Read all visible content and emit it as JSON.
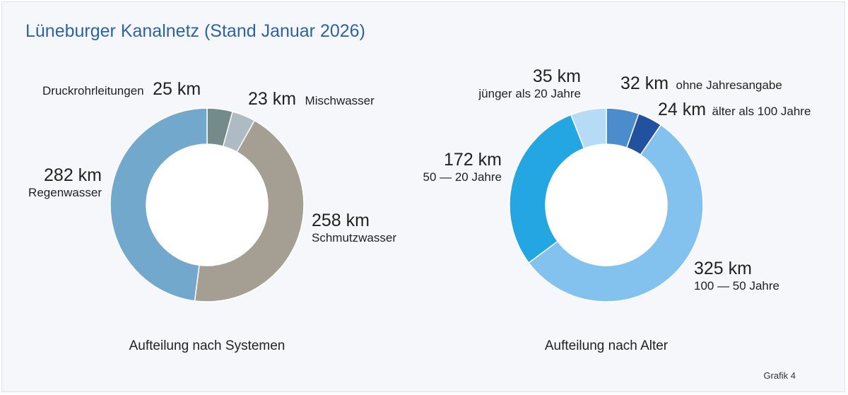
{
  "title": "Lüneburger Kanalnetz (Stand Januar 2026)",
  "footer": "Grafik 4",
  "chart_data": [
    {
      "type": "pie",
      "caption": "Aufteilung nach Systemen",
      "slices": [
        {
          "label": "Druckrohrleitungen",
          "value": 25,
          "display": "25 km",
          "color": "#738b8b"
        },
        {
          "label": "Mischwasser",
          "value": 23,
          "display": "23 km",
          "color": "#aebbc3"
        },
        {
          "label": "Schmutzwasser",
          "value": 258,
          "display": "258 km",
          "color": "#a59e93"
        },
        {
          "label": "Regenwasser",
          "value": 282,
          "display": "282 km",
          "color": "#73a8cd"
        }
      ]
    },
    {
      "type": "pie",
      "caption": "Aufteilung nach Alter",
      "slices": [
        {
          "label": "ohne Jahresangabe",
          "value": 32,
          "display": "32 km",
          "color": "#4b8ccc"
        },
        {
          "label": "älter als 100 Jahre",
          "value": 24,
          "display": "24 km",
          "color": "#22519f"
        },
        {
          "label": "100 — 50 Jahre",
          "value": 325,
          "display": "325 km",
          "color": "#83c2ee"
        },
        {
          "label": "50 — 20 Jahre",
          "value": 172,
          "display": "172 km",
          "color": "#24a6e3"
        },
        {
          "label": "jünger als 20 Jahre",
          "value": 35,
          "display": "35 km",
          "color": "#b6dbf6"
        }
      ]
    }
  ]
}
